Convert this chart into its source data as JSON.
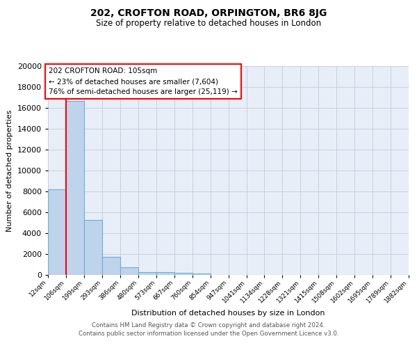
{
  "title": "202, CROFTON ROAD, ORPINGTON, BR6 8JG",
  "subtitle": "Size of property relative to detached houses in London",
  "xlabel": "Distribution of detached houses by size in London",
  "ylabel": "Number of detached properties",
  "bin_labels": [
    "12sqm",
    "106sqm",
    "199sqm",
    "293sqm",
    "386sqm",
    "480sqm",
    "573sqm",
    "667sqm",
    "760sqm",
    "854sqm",
    "947sqm",
    "1041sqm",
    "1134sqm",
    "1228sqm",
    "1321sqm",
    "1415sqm",
    "1508sqm",
    "1602sqm",
    "1695sqm",
    "1789sqm",
    "1882sqm"
  ],
  "bin_edges": [
    12,
    106,
    199,
    293,
    386,
    480,
    573,
    667,
    760,
    854,
    947,
    1041,
    1134,
    1228,
    1321,
    1415,
    1508,
    1602,
    1695,
    1789,
    1882
  ],
  "bar_values": [
    8200,
    16700,
    5300,
    1750,
    750,
    300,
    250,
    200,
    150,
    0,
    0,
    0,
    0,
    0,
    0,
    0,
    0,
    0,
    0,
    0
  ],
  "bar_color": "#bed3ec",
  "bar_edge_color": "#6baed6",
  "red_line_x": 106,
  "annotation_title": "202 CROFTON ROAD: 105sqm",
  "annotation_line1": "← 23% of detached houses are smaller (7,604)",
  "annotation_line2": "76% of semi-detached houses are larger (25,119) →",
  "ylim": [
    0,
    20000
  ],
  "yticks": [
    0,
    2000,
    4000,
    6000,
    8000,
    10000,
    12000,
    14000,
    16000,
    18000,
    20000
  ],
  "bg_color": "#e8eef8",
  "grid_color": "#c8cfe0",
  "footer1": "Contains HM Land Registry data © Crown copyright and database right 2024.",
  "footer2": "Contains public sector information licensed under the Open Government Licence v3.0."
}
